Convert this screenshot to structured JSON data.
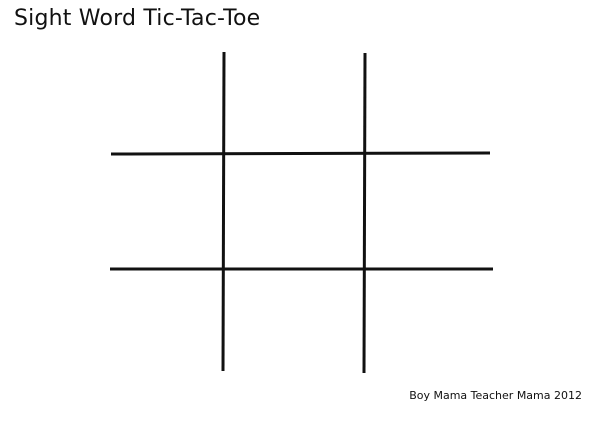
{
  "title": "Sight Word Tic-Tac-Toe",
  "credit": "Boy Mama Teacher Mama 2012",
  "board": {
    "rows": 3,
    "columns": 3,
    "cells": [
      "",
      "",
      "",
      "",
      "",
      "",
      "",
      "",
      ""
    ]
  },
  "colors": {
    "ink": "#111111",
    "background": "#ffffff"
  }
}
